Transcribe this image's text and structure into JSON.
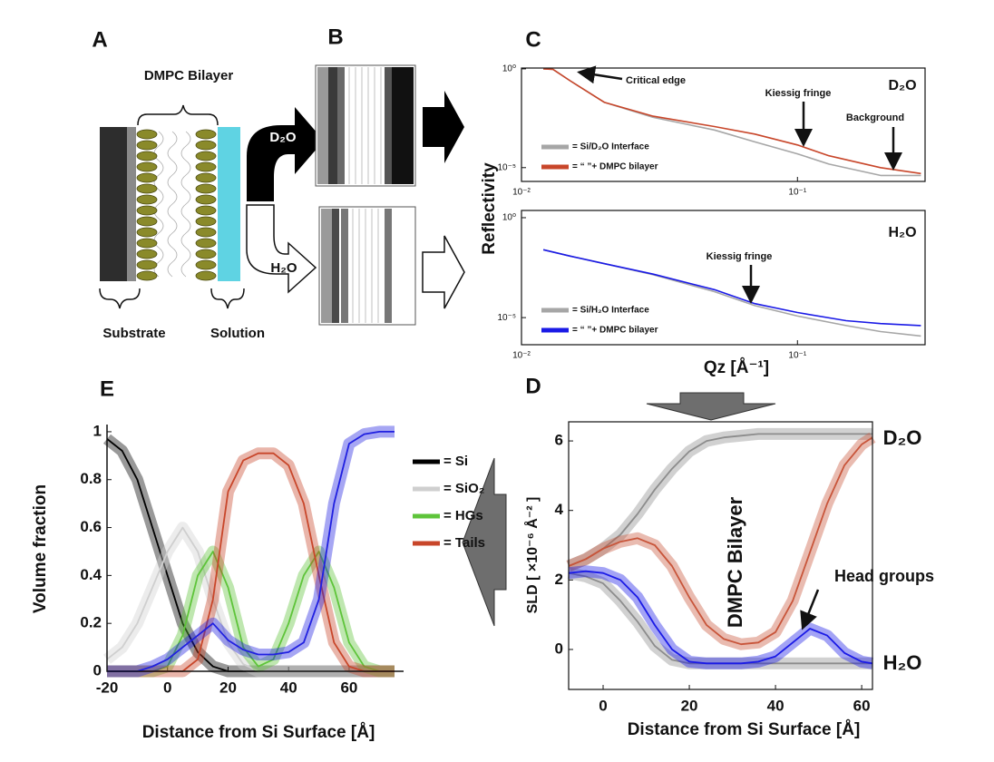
{
  "panel_labels": [
    "A",
    "B",
    "C",
    "D",
    "E"
  ],
  "diagram": {
    "bilayer_label": "DMPC Bilayer",
    "substrate_label": "Substrate",
    "solution_label": "Solution",
    "d2o_arrow": "D₂O",
    "h2o_arrow": "H₂O"
  },
  "chart_data": [
    {
      "type": "line",
      "xscale": "log",
      "yscale": "log",
      "frame": "box",
      "ylabel": "Reflectivity",
      "x": [
        0.012,
        0.013,
        0.015,
        0.02,
        0.03,
        0.05,
        0.07,
        0.1,
        0.13,
        0.2,
        0.28
      ],
      "series": [
        {
          "name": "= Si/D₂O Interface",
          "color": "#a6a6a6",
          "values": [
            1,
            0.95,
            0.25,
            0.02,
            0.0035,
            0.0008,
            0.0002,
            5e-05,
            1.5e-05,
            4e-06,
            4e-06
          ]
        },
        {
          "name": "= “ ”+ DMPC bilayer",
          "color": "#c8462a",
          "values": [
            1,
            0.95,
            0.25,
            0.02,
            0.004,
            0.0012,
            0.0005,
            0.00014,
            4e-05,
            1e-05,
            5e-06
          ]
        }
      ],
      "xlim": [
        0.01,
        0.29
      ],
      "ylim": [
        2e-06,
        1.1
      ],
      "xticks": [
        {
          "value": 0.01,
          "label": "10⁻²"
        },
        {
          "value": 0.1,
          "label": "10⁻¹"
        }
      ],
      "yticks": [
        {
          "value": 1,
          "label": "10⁰"
        },
        {
          "value": 1e-05,
          "label": "10⁻⁵"
        }
      ],
      "legend": "lower left",
      "annotations": [
        "Critical edge",
        "Kiessig fringe",
        "Background",
        "D₂O"
      ]
    },
    {
      "type": "line",
      "xscale": "log",
      "yscale": "log",
      "frame": "box",
      "xlabel": "Qz [Å⁻¹]",
      "x": [
        0.012,
        0.015,
        0.02,
        0.03,
        0.05,
        0.07,
        0.1,
        0.15,
        0.2,
        0.28
      ],
      "series": [
        {
          "name": "= Si/H₂O Interface",
          "color": "#a6a6a6",
          "values": [
            0.025,
            0.012,
            0.005,
            0.0014,
            0.0002,
            4e-05,
            1.2e-05,
            4e-06,
            2e-06,
            1.2e-06
          ]
        },
        {
          "name": "= “ ”+ DMPC bilayer",
          "color": "#1a1ae6",
          "values": [
            0.025,
            0.012,
            0.005,
            0.0015,
            0.00025,
            5e-05,
            1.8e-05,
            7e-06,
            5e-06,
            4e-06
          ]
        }
      ],
      "xlim": [
        0.01,
        0.29
      ],
      "ylim": [
        4.4e-07,
        2.3
      ],
      "xticks": [
        {
          "value": 0.01,
          "label": "10⁻²"
        },
        {
          "value": 0.1,
          "label": "10⁻¹"
        }
      ],
      "yticks": [
        {
          "value": 1,
          "label": "10⁰"
        },
        {
          "value": 1e-05,
          "label": "10⁻⁵"
        }
      ],
      "legend": "lower left",
      "annotations": [
        "Kiessig fringe",
        "H₂O"
      ]
    },
    {
      "type": "line",
      "xscale": "linear",
      "yscale": "linear",
      "frame": "box",
      "bands": true,
      "xlabel": "Distance from Si Surface [Å]",
      "ylabel": "SLD [ ×10⁻⁶ Å⁻² ]",
      "x": [
        -8,
        -4,
        0,
        4,
        8,
        12,
        16,
        20,
        24,
        28,
        32,
        36,
        40,
        44,
        48,
        52,
        56,
        60,
        62.5
      ],
      "series": [
        {
          "color": "#8c8c8c",
          "values": [
            2.4,
            2.6,
            2.9,
            3.3,
            3.9,
            4.6,
            5.2,
            5.7,
            6.0,
            6.1,
            6.15,
            6.2,
            6.2,
            6.2,
            6.2,
            6.2,
            6.2,
            6.2,
            6.2
          ]
        },
        {
          "color": "#8c8c8c",
          "values": [
            2.2,
            2.1,
            1.9,
            1.4,
            0.8,
            0.1,
            -0.3,
            -0.4,
            -0.4,
            -0.4,
            -0.4,
            -0.4,
            -0.4,
            -0.4,
            -0.4,
            -0.4,
            -0.4,
            -0.4,
            -0.4
          ]
        },
        {
          "color": "#c8553a",
          "values": [
            2.4,
            2.6,
            2.9,
            3.1,
            3.2,
            3.0,
            2.4,
            1.5,
            0.7,
            0.3,
            0.15,
            0.2,
            0.5,
            1.4,
            2.8,
            4.2,
            5.3,
            5.9,
            6.1
          ]
        },
        {
          "color": "#1a1ae6",
          "values": [
            2.2,
            2.25,
            2.2,
            2.0,
            1.5,
            0.7,
            0.0,
            -0.35,
            -0.4,
            -0.4,
            -0.4,
            -0.35,
            -0.2,
            0.2,
            0.6,
            0.4,
            -0.1,
            -0.35,
            -0.4
          ]
        }
      ],
      "xlim": [
        -8,
        62.5
      ],
      "ylim": [
        -1.15,
        6.55
      ],
      "xticks": [
        0,
        20,
        40,
        60
      ],
      "yticks": [
        0,
        2,
        4,
        6
      ],
      "annotations": [
        "D₂O",
        "H₂O",
        "DMPC Bilayer",
        "Head groups"
      ]
    },
    {
      "type": "line",
      "xscale": "linear",
      "yscale": "linear",
      "frame": "axes",
      "bands": true,
      "xlabel": "Distance from Si Surface [Å]",
      "ylabel": "Volume fraction",
      "x": [
        -20,
        -15,
        -10,
        -5,
        0,
        5,
        10,
        15,
        20,
        25,
        30,
        35,
        40,
        45,
        50,
        55,
        60,
        65,
        70,
        75
      ],
      "series": [
        {
          "name": "= Si",
          "color": "#000000",
          "values": [
            0.97,
            0.92,
            0.8,
            0.6,
            0.4,
            0.2,
            0.08,
            0.02,
            0,
            0,
            0,
            0,
            0,
            0,
            0,
            0,
            0,
            0,
            0,
            0
          ]
        },
        {
          "name": "= SiO₂",
          "color": "#cfcfcf",
          "values": [
            0.05,
            0.1,
            0.2,
            0.35,
            0.5,
            0.6,
            0.5,
            0.3,
            0.12,
            0.03,
            0,
            0,
            0,
            0,
            0,
            0,
            0,
            0,
            0,
            0
          ]
        },
        {
          "name": "= HGs",
          "color": "#5ec43a",
          "values": [
            0,
            0,
            0,
            0,
            0.02,
            0.15,
            0.4,
            0.5,
            0.35,
            0.1,
            0.02,
            0.05,
            0.2,
            0.4,
            0.5,
            0.35,
            0.12,
            0.02,
            0,
            0
          ]
        },
        {
          "name": "= Tails",
          "color": "#c8462a",
          "values": [
            0,
            0,
            0,
            0,
            0,
            0,
            0.05,
            0.3,
            0.75,
            0.88,
            0.91,
            0.91,
            0.86,
            0.7,
            0.4,
            0.12,
            0.02,
            0,
            0,
            0
          ]
        },
        {
          "color": "#2020e0",
          "values": [
            0,
            0,
            0,
            0.02,
            0.05,
            0.1,
            0.15,
            0.2,
            0.13,
            0.09,
            0.07,
            0.07,
            0.08,
            0.12,
            0.3,
            0.7,
            0.95,
            0.99,
            1,
            1
          ]
        }
      ],
      "xlim": [
        -20,
        78
      ],
      "ylim": [
        0,
        1.03
      ],
      "xticks": [
        -20,
        0,
        20,
        40,
        60
      ],
      "yticks": [
        0,
        0.2,
        0.4,
        0.6,
        0.8,
        1
      ],
      "legend": "center right"
    }
  ]
}
